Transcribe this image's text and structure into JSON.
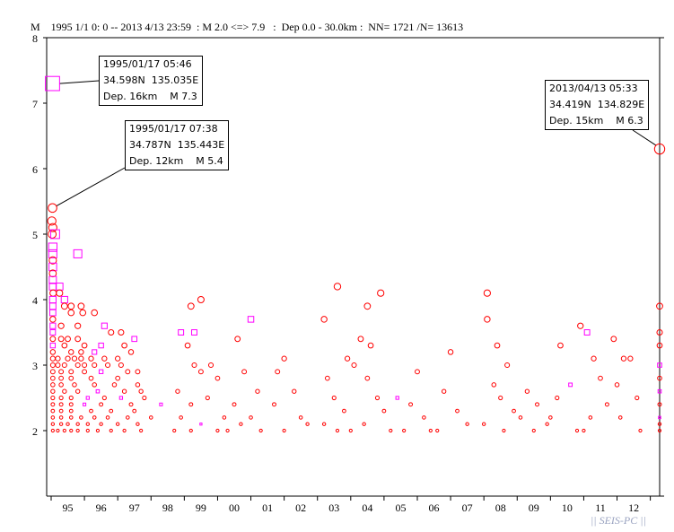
{
  "header": {
    "axis_unit": "M",
    "summary": "1995 1/1 0: 0 -- 2013 4/13 23:59  : M 2.0 <=> 7.9   :  Dep 0.0 - 30.0km :  NN= 1721 /N= 13613"
  },
  "annotations": [
    {
      "date": "1995/01/17 05:46",
      "coords": "34.598N  135.035E",
      "detail": "Dep. 16km    M 7.3",
      "year": 1995.04,
      "mag": 7.3
    },
    {
      "date": "1995/01/17 07:38",
      "coords": "34.787N  135.443E",
      "detail": "Dep. 12km    M 5.4",
      "year": 1995.04,
      "mag": 5.4
    },
    {
      "date": "2013/04/13 05:33",
      "coords": "34.419N  134.829E",
      "detail": "Dep. 15km    M 6.3",
      "year": 2013.28,
      "mag": 6.3
    }
  ],
  "brand": "|| SEIS-PC ||",
  "chart_data": {
    "type": "scatter",
    "title": "1995 1/1 0: 0 -- 2013 4/13 23:59 : M 2.0 <=> 7.9 : Dep 0.0 - 30.0km : NN= 1721 /N= 13613",
    "xlabel": "",
    "ylabel": "M",
    "xlim": [
      1995.0,
      2013.28
    ],
    "ylim": [
      1,
      8
    ],
    "yticks": [
      2,
      3,
      4,
      5,
      6,
      7,
      8
    ],
    "xtick_labels": [
      "95",
      "96",
      "97",
      "98",
      "99",
      "00",
      "01",
      "02",
      "03",
      "04",
      "05",
      "06",
      "07",
      "08",
      "09",
      "10",
      "11",
      "12"
    ],
    "colors": {
      "circle": "#ff0000",
      "square": "#ff00ff"
    },
    "points": [
      [
        1995.04,
        7.3,
        "s"
      ],
      [
        1995.04,
        5.4,
        "c"
      ],
      [
        2013.28,
        6.3,
        "c"
      ],
      [
        1995.02,
        5.2,
        "c"
      ],
      [
        1995.05,
        5.1,
        "c"
      ],
      [
        1995.03,
        5.0,
        "c"
      ],
      [
        1995.12,
        5.0,
        "s"
      ],
      [
        1995.05,
        4.8,
        "s"
      ],
      [
        1995.05,
        4.7,
        "s"
      ],
      [
        1995.8,
        4.7,
        "s"
      ],
      [
        1995.05,
        4.6,
        "c"
      ],
      [
        1995.05,
        4.5,
        "s"
      ],
      [
        1995.05,
        4.4,
        "c"
      ],
      [
        1995.05,
        4.3,
        "s"
      ],
      [
        1995.05,
        4.2,
        "s"
      ],
      [
        1995.25,
        4.2,
        "s"
      ],
      [
        1995.06,
        4.1,
        "c"
      ],
      [
        1995.25,
        4.1,
        "c"
      ],
      [
        1995.05,
        4.0,
        "s"
      ],
      [
        1995.4,
        4.0,
        "s"
      ],
      [
        1995.05,
        3.9,
        "s"
      ],
      [
        1995.4,
        3.9,
        "c"
      ],
      [
        1995.6,
        3.9,
        "c"
      ],
      [
        1995.9,
        3.9,
        "c"
      ],
      [
        1996.3,
        3.8,
        "c"
      ],
      [
        1995.05,
        3.8,
        "s"
      ],
      [
        1995.6,
        3.8,
        "c"
      ],
      [
        1995.95,
        3.8,
        "c"
      ],
      [
        1995.05,
        3.7,
        "c"
      ],
      [
        1995.05,
        3.6,
        "s"
      ],
      [
        1995.3,
        3.6,
        "c"
      ],
      [
        1995.8,
        3.6,
        "c"
      ],
      [
        1996.6,
        3.6,
        "s"
      ],
      [
        1997.1,
        3.5,
        "c"
      ],
      [
        1995.05,
        3.5,
        "s"
      ],
      [
        1996.8,
        3.5,
        "c"
      ],
      [
        1995.05,
        3.4,
        "c"
      ],
      [
        1995.3,
        3.4,
        "c"
      ],
      [
        1995.5,
        3.4,
        "c"
      ],
      [
        1995.8,
        3.4,
        "c"
      ],
      [
        1997.5,
        3.4,
        "s"
      ],
      [
        1995.05,
        3.3,
        "s"
      ],
      [
        1995.4,
        3.3,
        "c"
      ],
      [
        1996.0,
        3.3,
        "c"
      ],
      [
        1996.5,
        3.3,
        "s"
      ],
      [
        1997.2,
        3.3,
        "c"
      ],
      [
        1995.05,
        3.2,
        "c"
      ],
      [
        1995.6,
        3.2,
        "c"
      ],
      [
        1995.9,
        3.2,
        "c"
      ],
      [
        1996.3,
        3.2,
        "s"
      ],
      [
        1997.4,
        3.2,
        "c"
      ],
      [
        1995.05,
        3.1,
        "c"
      ],
      [
        1995.2,
        3.1,
        "c"
      ],
      [
        1995.5,
        3.1,
        "c"
      ],
      [
        1995.7,
        3.1,
        "c"
      ],
      [
        1995.9,
        3.1,
        "c"
      ],
      [
        1996.2,
        3.1,
        "c"
      ],
      [
        1996.6,
        3.1,
        "c"
      ],
      [
        1997.0,
        3.1,
        "c"
      ],
      [
        1995.05,
        3.0,
        "c"
      ],
      [
        1995.2,
        3.0,
        "c"
      ],
      [
        1995.4,
        3.0,
        "c"
      ],
      [
        1995.8,
        3.0,
        "c"
      ],
      [
        1996.0,
        3.0,
        "c"
      ],
      [
        1996.3,
        3.0,
        "c"
      ],
      [
        1996.7,
        3.0,
        "c"
      ],
      [
        1997.1,
        3.0,
        "c"
      ],
      [
        1995.05,
        2.9,
        "c"
      ],
      [
        1995.3,
        2.9,
        "c"
      ],
      [
        1995.6,
        2.9,
        "c"
      ],
      [
        1996.0,
        2.9,
        "c"
      ],
      [
        1996.5,
        2.9,
        "s"
      ],
      [
        1997.3,
        2.9,
        "c"
      ],
      [
        1997.6,
        2.9,
        "c"
      ],
      [
        1995.05,
        2.8,
        "c"
      ],
      [
        1995.3,
        2.8,
        "c"
      ],
      [
        1995.6,
        2.8,
        "c"
      ],
      [
        1996.2,
        2.8,
        "c"
      ],
      [
        1997.0,
        2.8,
        "c"
      ],
      [
        1995.05,
        2.7,
        "c"
      ],
      [
        1995.3,
        2.7,
        "c"
      ],
      [
        1995.7,
        2.7,
        "c"
      ],
      [
        1996.3,
        2.7,
        "c"
      ],
      [
        1996.9,
        2.7,
        "c"
      ],
      [
        1997.6,
        2.7,
        "c"
      ],
      [
        1995.05,
        2.6,
        "c"
      ],
      [
        1995.4,
        2.6,
        "c"
      ],
      [
        1995.8,
        2.6,
        "c"
      ],
      [
        1996.4,
        2.6,
        "s"
      ],
      [
        1997.2,
        2.6,
        "c"
      ],
      [
        1997.7,
        2.6,
        "c"
      ],
      [
        1995.05,
        2.5,
        "c"
      ],
      [
        1995.3,
        2.5,
        "c"
      ],
      [
        1995.6,
        2.5,
        "c"
      ],
      [
        1996.1,
        2.5,
        "s"
      ],
      [
        1996.6,
        2.5,
        "c"
      ],
      [
        1997.1,
        2.5,
        "s"
      ],
      [
        1997.8,
        2.5,
        "c"
      ],
      [
        1995.05,
        2.4,
        "c"
      ],
      [
        1995.3,
        2.4,
        "c"
      ],
      [
        1995.6,
        2.4,
        "c"
      ],
      [
        1996.0,
        2.4,
        "s"
      ],
      [
        1996.5,
        2.4,
        "c"
      ],
      [
        1997.4,
        2.4,
        "c"
      ],
      [
        1998.3,
        2.4,
        "s"
      ],
      [
        1995.05,
        2.3,
        "c"
      ],
      [
        1995.3,
        2.3,
        "c"
      ],
      [
        1995.6,
        2.3,
        "c"
      ],
      [
        1996.2,
        2.3,
        "c"
      ],
      [
        1996.8,
        2.3,
        "c"
      ],
      [
        1997.5,
        2.3,
        "c"
      ],
      [
        1995.05,
        2.2,
        "c"
      ],
      [
        1995.3,
        2.2,
        "c"
      ],
      [
        1995.6,
        2.2,
        "c"
      ],
      [
        1995.9,
        2.2,
        "c"
      ],
      [
        1996.3,
        2.2,
        "c"
      ],
      [
        1996.7,
        2.2,
        "c"
      ],
      [
        1997.3,
        2.2,
        "c"
      ],
      [
        1998.0,
        2.2,
        "c"
      ],
      [
        1995.05,
        2.1,
        "c"
      ],
      [
        1995.3,
        2.1,
        "c"
      ],
      [
        1995.5,
        2.1,
        "c"
      ],
      [
        1995.8,
        2.1,
        "c"
      ],
      [
        1996.1,
        2.1,
        "c"
      ],
      [
        1996.5,
        2.1,
        "c"
      ],
      [
        1997.0,
        2.1,
        "c"
      ],
      [
        1997.6,
        2.1,
        "c"
      ],
      [
        1995.05,
        2.0,
        "c"
      ],
      [
        1995.2,
        2.0,
        "c"
      ],
      [
        1995.4,
        2.0,
        "c"
      ],
      [
        1995.6,
        2.0,
        "c"
      ],
      [
        1995.8,
        2.0,
        "c"
      ],
      [
        1996.1,
        2.0,
        "c"
      ],
      [
        1996.4,
        2.0,
        "c"
      ],
      [
        1996.8,
        2.0,
        "c"
      ],
      [
        1997.2,
        2.0,
        "c"
      ],
      [
        1997.7,
        2.0,
        "c"
      ],
      [
        1998.7,
        2.0,
        "c"
      ],
      [
        1999.5,
        4.0,
        "c"
      ],
      [
        1999.2,
        3.9,
        "c"
      ],
      [
        1998.9,
        3.5,
        "s"
      ],
      [
        1999.3,
        3.5,
        "s"
      ],
      [
        1999.1,
        3.3,
        "c"
      ],
      [
        1999.3,
        3.0,
        "c"
      ],
      [
        1999.8,
        3.0,
        "c"
      ],
      [
        1999.5,
        2.9,
        "c"
      ],
      [
        2000.0,
        2.8,
        "c"
      ],
      [
        1998.8,
        2.6,
        "c"
      ],
      [
        1999.7,
        2.5,
        "c"
      ],
      [
        1999.2,
        2.4,
        "c"
      ],
      [
        1998.9,
        2.2,
        "c"
      ],
      [
        2000.2,
        2.2,
        "c"
      ],
      [
        1999.5,
        2.1,
        "s"
      ],
      [
        2000.0,
        2.0,
        "c"
      ],
      [
        1999.2,
        2.0,
        "c"
      ],
      [
        2001.0,
        3.7,
        "s"
      ],
      [
        2000.6,
        3.4,
        "c"
      ],
      [
        2000.8,
        2.9,
        "c"
      ],
      [
        2001.2,
        2.6,
        "c"
      ],
      [
        2000.5,
        2.4,
        "c"
      ],
      [
        2001.0,
        2.2,
        "c"
      ],
      [
        2000.7,
        2.1,
        "c"
      ],
      [
        2001.3,
        2.0,
        "c"
      ],
      [
        2000.3,
        2.0,
        "c"
      ],
      [
        2002.0,
        3.1,
        "c"
      ],
      [
        2001.8,
        2.9,
        "c"
      ],
      [
        2002.3,
        2.6,
        "c"
      ],
      [
        2001.7,
        2.4,
        "c"
      ],
      [
        2002.5,
        2.2,
        "c"
      ],
      [
        2002.0,
        2.0,
        "c"
      ],
      [
        2002.7,
        2.1,
        "c"
      ],
      [
        2003.6,
        4.2,
        "c"
      ],
      [
        2003.2,
        3.7,
        "c"
      ],
      [
        2003.9,
        3.1,
        "c"
      ],
      [
        2004.1,
        3.0,
        "c"
      ],
      [
        2003.3,
        2.8,
        "c"
      ],
      [
        2003.5,
        2.5,
        "c"
      ],
      [
        2003.8,
        2.3,
        "c"
      ],
      [
        2003.2,
        2.1,
        "c"
      ],
      [
        2004.0,
        2.0,
        "c"
      ],
      [
        2003.6,
        2.0,
        "c"
      ],
      [
        2004.9,
        4.1,
        "c"
      ],
      [
        2004.5,
        3.9,
        "c"
      ],
      [
        2004.3,
        3.4,
        "c"
      ],
      [
        2004.6,
        3.3,
        "c"
      ],
      [
        2004.5,
        2.8,
        "c"
      ],
      [
        2004.8,
        2.5,
        "c"
      ],
      [
        2005.0,
        2.3,
        "c"
      ],
      [
        2004.4,
        2.1,
        "c"
      ],
      [
        2005.2,
        2.0,
        "c"
      ],
      [
        2005.4,
        2.5,
        "s"
      ],
      [
        2005.8,
        2.4,
        "c"
      ],
      [
        2006.0,
        2.9,
        "c"
      ],
      [
        2006.2,
        2.2,
        "c"
      ],
      [
        2005.6,
        2.0,
        "c"
      ],
      [
        2006.4,
        2.0,
        "c"
      ],
      [
        2007.0,
        3.2,
        "c"
      ],
      [
        2006.8,
        2.6,
        "c"
      ],
      [
        2007.2,
        2.3,
        "c"
      ],
      [
        2006.6,
        2.0,
        "c"
      ],
      [
        2007.5,
        2.1,
        "c"
      ],
      [
        2008.1,
        4.1,
        "c"
      ],
      [
        2008.1,
        3.7,
        "c"
      ],
      [
        2008.4,
        3.3,
        "c"
      ],
      [
        2008.7,
        3.0,
        "c"
      ],
      [
        2008.3,
        2.7,
        "c"
      ],
      [
        2008.5,
        2.5,
        "c"
      ],
      [
        2008.9,
        2.3,
        "c"
      ],
      [
        2008.0,
        2.1,
        "c"
      ],
      [
        2008.6,
        2.0,
        "c"
      ],
      [
        2009.3,
        2.6,
        "c"
      ],
      [
        2009.6,
        2.4,
        "c"
      ],
      [
        2009.1,
        2.2,
        "c"
      ],
      [
        2009.9,
        2.1,
        "c"
      ],
      [
        2009.5,
        2.0,
        "c"
      ],
      [
        2010.3,
        3.3,
        "c"
      ],
      [
        2010.6,
        2.7,
        "s"
      ],
      [
        2010.2,
        2.5,
        "c"
      ],
      [
        2010.0,
        2.2,
        "c"
      ],
      [
        2010.8,
        2.0,
        "c"
      ],
      [
        2010.9,
        3.6,
        "c"
      ],
      [
        2011.1,
        3.5,
        "s"
      ],
      [
        2011.3,
        3.1,
        "c"
      ],
      [
        2011.5,
        2.8,
        "c"
      ],
      [
        2011.7,
        2.4,
        "c"
      ],
      [
        2011.2,
        2.2,
        "c"
      ],
      [
        2011.0,
        2.0,
        "c"
      ],
      [
        2011.9,
        3.4,
        "c"
      ],
      [
        2012.2,
        3.1,
        "c"
      ],
      [
        2012.4,
        3.1,
        "c"
      ],
      [
        2012.0,
        2.7,
        "c"
      ],
      [
        2012.6,
        2.5,
        "c"
      ],
      [
        2012.1,
        2.2,
        "c"
      ],
      [
        2012.7,
        2.0,
        "c"
      ],
      [
        2013.28,
        3.9,
        "c"
      ],
      [
        2013.28,
        3.5,
        "c"
      ],
      [
        2013.28,
        3.3,
        "c"
      ],
      [
        2013.28,
        3.0,
        "s"
      ],
      [
        2013.28,
        2.8,
        "c"
      ],
      [
        2013.28,
        2.6,
        "s"
      ],
      [
        2013.28,
        2.4,
        "c"
      ],
      [
        2013.28,
        2.2,
        "s"
      ],
      [
        2013.28,
        2.1,
        "c"
      ],
      [
        2013.28,
        2.0,
        "c"
      ]
    ]
  }
}
